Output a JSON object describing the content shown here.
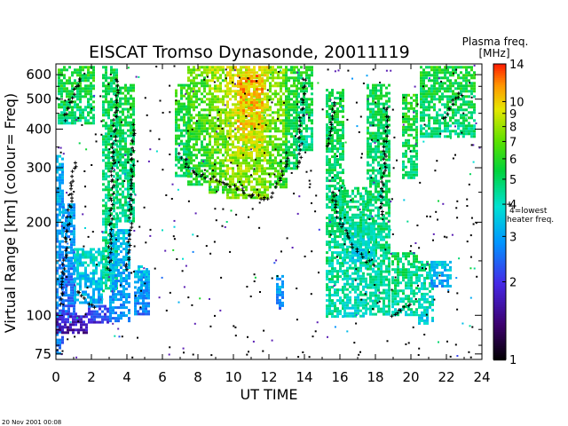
{
  "chart_data": {
    "type": "heatmap",
    "title": "EISCAT Tromso Dynasonde,  20011119",
    "xlabel": "UT TIME",
    "ylabel": "Virtual Range [km]  (colour= Freq)",
    "x_ticks": [
      "0",
      "2",
      "4",
      "6",
      "8",
      "10",
      "12",
      "14",
      "16",
      "18",
      "20",
      "22",
      "24"
    ],
    "xlim": [
      0,
      24
    ],
    "ylim": [
      72,
      650
    ],
    "y_scale": "log",
    "y_ticks": [
      "75",
      "100",
      "200",
      "300",
      "400",
      "500",
      "600"
    ],
    "colorbar": {
      "title_line1": "Plasma freq.",
      "title_line2": "[MHz]",
      "scale": "log",
      "range": [
        1,
        14
      ],
      "ticks": [
        "14",
        "10",
        "9",
        "8",
        "7",
        "6",
        "5",
        "4",
        "3",
        "2",
        "1"
      ],
      "marker_label_line1": "4=lowest",
      "marker_label_line2": "heater freq.",
      "marker_value": 4
    },
    "patches": [
      {
        "x0": 0.0,
        "x1": 0.35,
        "y0": 75,
        "y1": 330,
        "f": 3.0
      },
      {
        "x0": 0.35,
        "x1": 1.0,
        "y0": 100,
        "y1": 230,
        "f": 2.8
      },
      {
        "x0": 1.0,
        "x1": 2.6,
        "y0": 110,
        "y1": 165,
        "f": 3.6
      },
      {
        "x0": 0.0,
        "x1": 1.8,
        "y0": 88,
        "y1": 102,
        "f": 1.8
      },
      {
        "x0": 1.8,
        "x1": 3.0,
        "y0": 95,
        "y1": 108,
        "f": 2.2
      },
      {
        "x0": 0.1,
        "x1": 2.2,
        "y0": 420,
        "y1": 640,
        "f": 5.5
      },
      {
        "x0": 2.6,
        "x1": 3.4,
        "y0": 120,
        "y1": 640,
        "f": 5.0
      },
      {
        "x0": 3.0,
        "x1": 4.1,
        "y0": 95,
        "y1": 190,
        "f": 3.2
      },
      {
        "x0": 3.4,
        "x1": 4.4,
        "y0": 200,
        "y1": 560,
        "f": 5.2
      },
      {
        "x0": 4.4,
        "x1": 5.2,
        "y0": 100,
        "y1": 140,
        "f": 3.0
      },
      {
        "x0": 4.6,
        "x1": 5.2,
        "y0": 115,
        "y1": 145,
        "f": 3.2
      },
      {
        "x0": 6.7,
        "x1": 7.5,
        "y0": 280,
        "y1": 560,
        "f": 5.6
      },
      {
        "x0": 7.4,
        "x1": 8.6,
        "y0": 265,
        "y1": 640,
        "f": 6.5
      },
      {
        "x0": 8.6,
        "x1": 9.6,
        "y0": 250,
        "y1": 640,
        "f": 7.5
      },
      {
        "x0": 9.6,
        "x1": 12.0,
        "y0": 240,
        "y1": 640,
        "f": 8.5
      },
      {
        "x0": 10.2,
        "x1": 11.6,
        "y0": 330,
        "y1": 600,
        "f": 10.5
      },
      {
        "x0": 12.0,
        "x1": 13.0,
        "y0": 260,
        "y1": 640,
        "f": 7.2
      },
      {
        "x0": 12.9,
        "x1": 13.6,
        "y0": 300,
        "y1": 640,
        "f": 5.8
      },
      {
        "x0": 13.6,
        "x1": 14.4,
        "y0": 340,
        "y1": 640,
        "f": 5.2
      },
      {
        "x0": 15.2,
        "x1": 16.2,
        "y0": 100,
        "y1": 540,
        "f": 5.0
      },
      {
        "x0": 16.2,
        "x1": 17.5,
        "y0": 100,
        "y1": 260,
        "f": 4.6
      },
      {
        "x0": 17.5,
        "x1": 18.8,
        "y0": 100,
        "y1": 560,
        "f": 5.0
      },
      {
        "x0": 18.9,
        "x1": 20.4,
        "y0": 100,
        "y1": 160,
        "f": 4.8
      },
      {
        "x0": 19.5,
        "x1": 20.4,
        "y0": 280,
        "y1": 520,
        "f": 5.6
      },
      {
        "x0": 20.4,
        "x1": 21.2,
        "y0": 95,
        "y1": 150,
        "f": 4.2
      },
      {
        "x0": 21.1,
        "x1": 22.2,
        "y0": 125,
        "y1": 150,
        "f": 3.4
      },
      {
        "x0": 20.5,
        "x1": 23.6,
        "y0": 380,
        "y1": 640,
        "f": 5.4
      },
      {
        "x0": 12.4,
        "x1": 12.8,
        "y0": 105,
        "y1": 135,
        "f": 3.0
      },
      {
        "x0": 16.5,
        "x1": 18.0,
        "y0": 150,
        "y1": 200,
        "f": 4.0
      }
    ],
    "traces": [
      {
        "points": [
          [
            7.0,
            330
          ],
          [
            7.5,
            300
          ],
          [
            8.0,
            285
          ],
          [
            8.5,
            280
          ],
          [
            9.0,
            275
          ],
          [
            9.5,
            265
          ],
          [
            10.0,
            260
          ],
          [
            10.5,
            250
          ],
          [
            11.0,
            245
          ],
          [
            11.5,
            240
          ],
          [
            12.0,
            238
          ],
          [
            12.3,
            250
          ],
          [
            12.6,
            270
          ],
          [
            12.9,
            300
          ],
          [
            13.1,
            340
          ]
        ]
      },
      {
        "points": [
          [
            13.7,
            300
          ],
          [
            13.8,
            400
          ],
          [
            13.9,
            500
          ],
          [
            14.0,
            600
          ]
        ]
      },
      {
        "points": [
          [
            3.0,
            140
          ],
          [
            3.1,
            200
          ],
          [
            3.2,
            300
          ],
          [
            3.3,
            400
          ],
          [
            3.4,
            500
          ],
          [
            3.5,
            600
          ]
        ]
      },
      {
        "points": [
          [
            0.3,
            110
          ],
          [
            0.6,
            180
          ],
          [
            0.9,
            260
          ],
          [
            1.1,
            320
          ]
        ]
      },
      {
        "points": [
          [
            15.6,
            250
          ],
          [
            16.0,
            200
          ],
          [
            16.5,
            180
          ],
          [
            17.0,
            160
          ],
          [
            17.5,
            150
          ],
          [
            18.0,
            145
          ]
        ]
      },
      {
        "points": [
          [
            4.0,
            140
          ],
          [
            4.2,
            200
          ],
          [
            4.3,
            300
          ],
          [
            4.4,
            420
          ]
        ]
      },
      {
        "points": [
          [
            18.3,
            210
          ],
          [
            18.5,
            300
          ],
          [
            18.6,
            400
          ],
          [
            18.7,
            480
          ]
        ]
      },
      {
        "points": [
          [
            0.5,
            430
          ],
          [
            1.0,
            520
          ],
          [
            1.4,
            600
          ]
        ]
      },
      {
        "points": [
          [
            21.8,
            430
          ],
          [
            22.2,
            470
          ],
          [
            22.7,
            520
          ],
          [
            23.0,
            500
          ]
        ]
      },
      {
        "points": [
          [
            15.3,
            350
          ],
          [
            15.5,
            420
          ],
          [
            15.7,
            500
          ]
        ]
      },
      {
        "points": [
          [
            18.9,
            100
          ],
          [
            19.5,
            105
          ],
          [
            20.2,
            108
          ]
        ]
      },
      {
        "points": [
          [
            1.2,
            120
          ],
          [
            1.8,
            110
          ],
          [
            2.4,
            105
          ]
        ]
      }
    ]
  },
  "footer": {
    "timestamp": "20 Nov 2001 00:08"
  }
}
